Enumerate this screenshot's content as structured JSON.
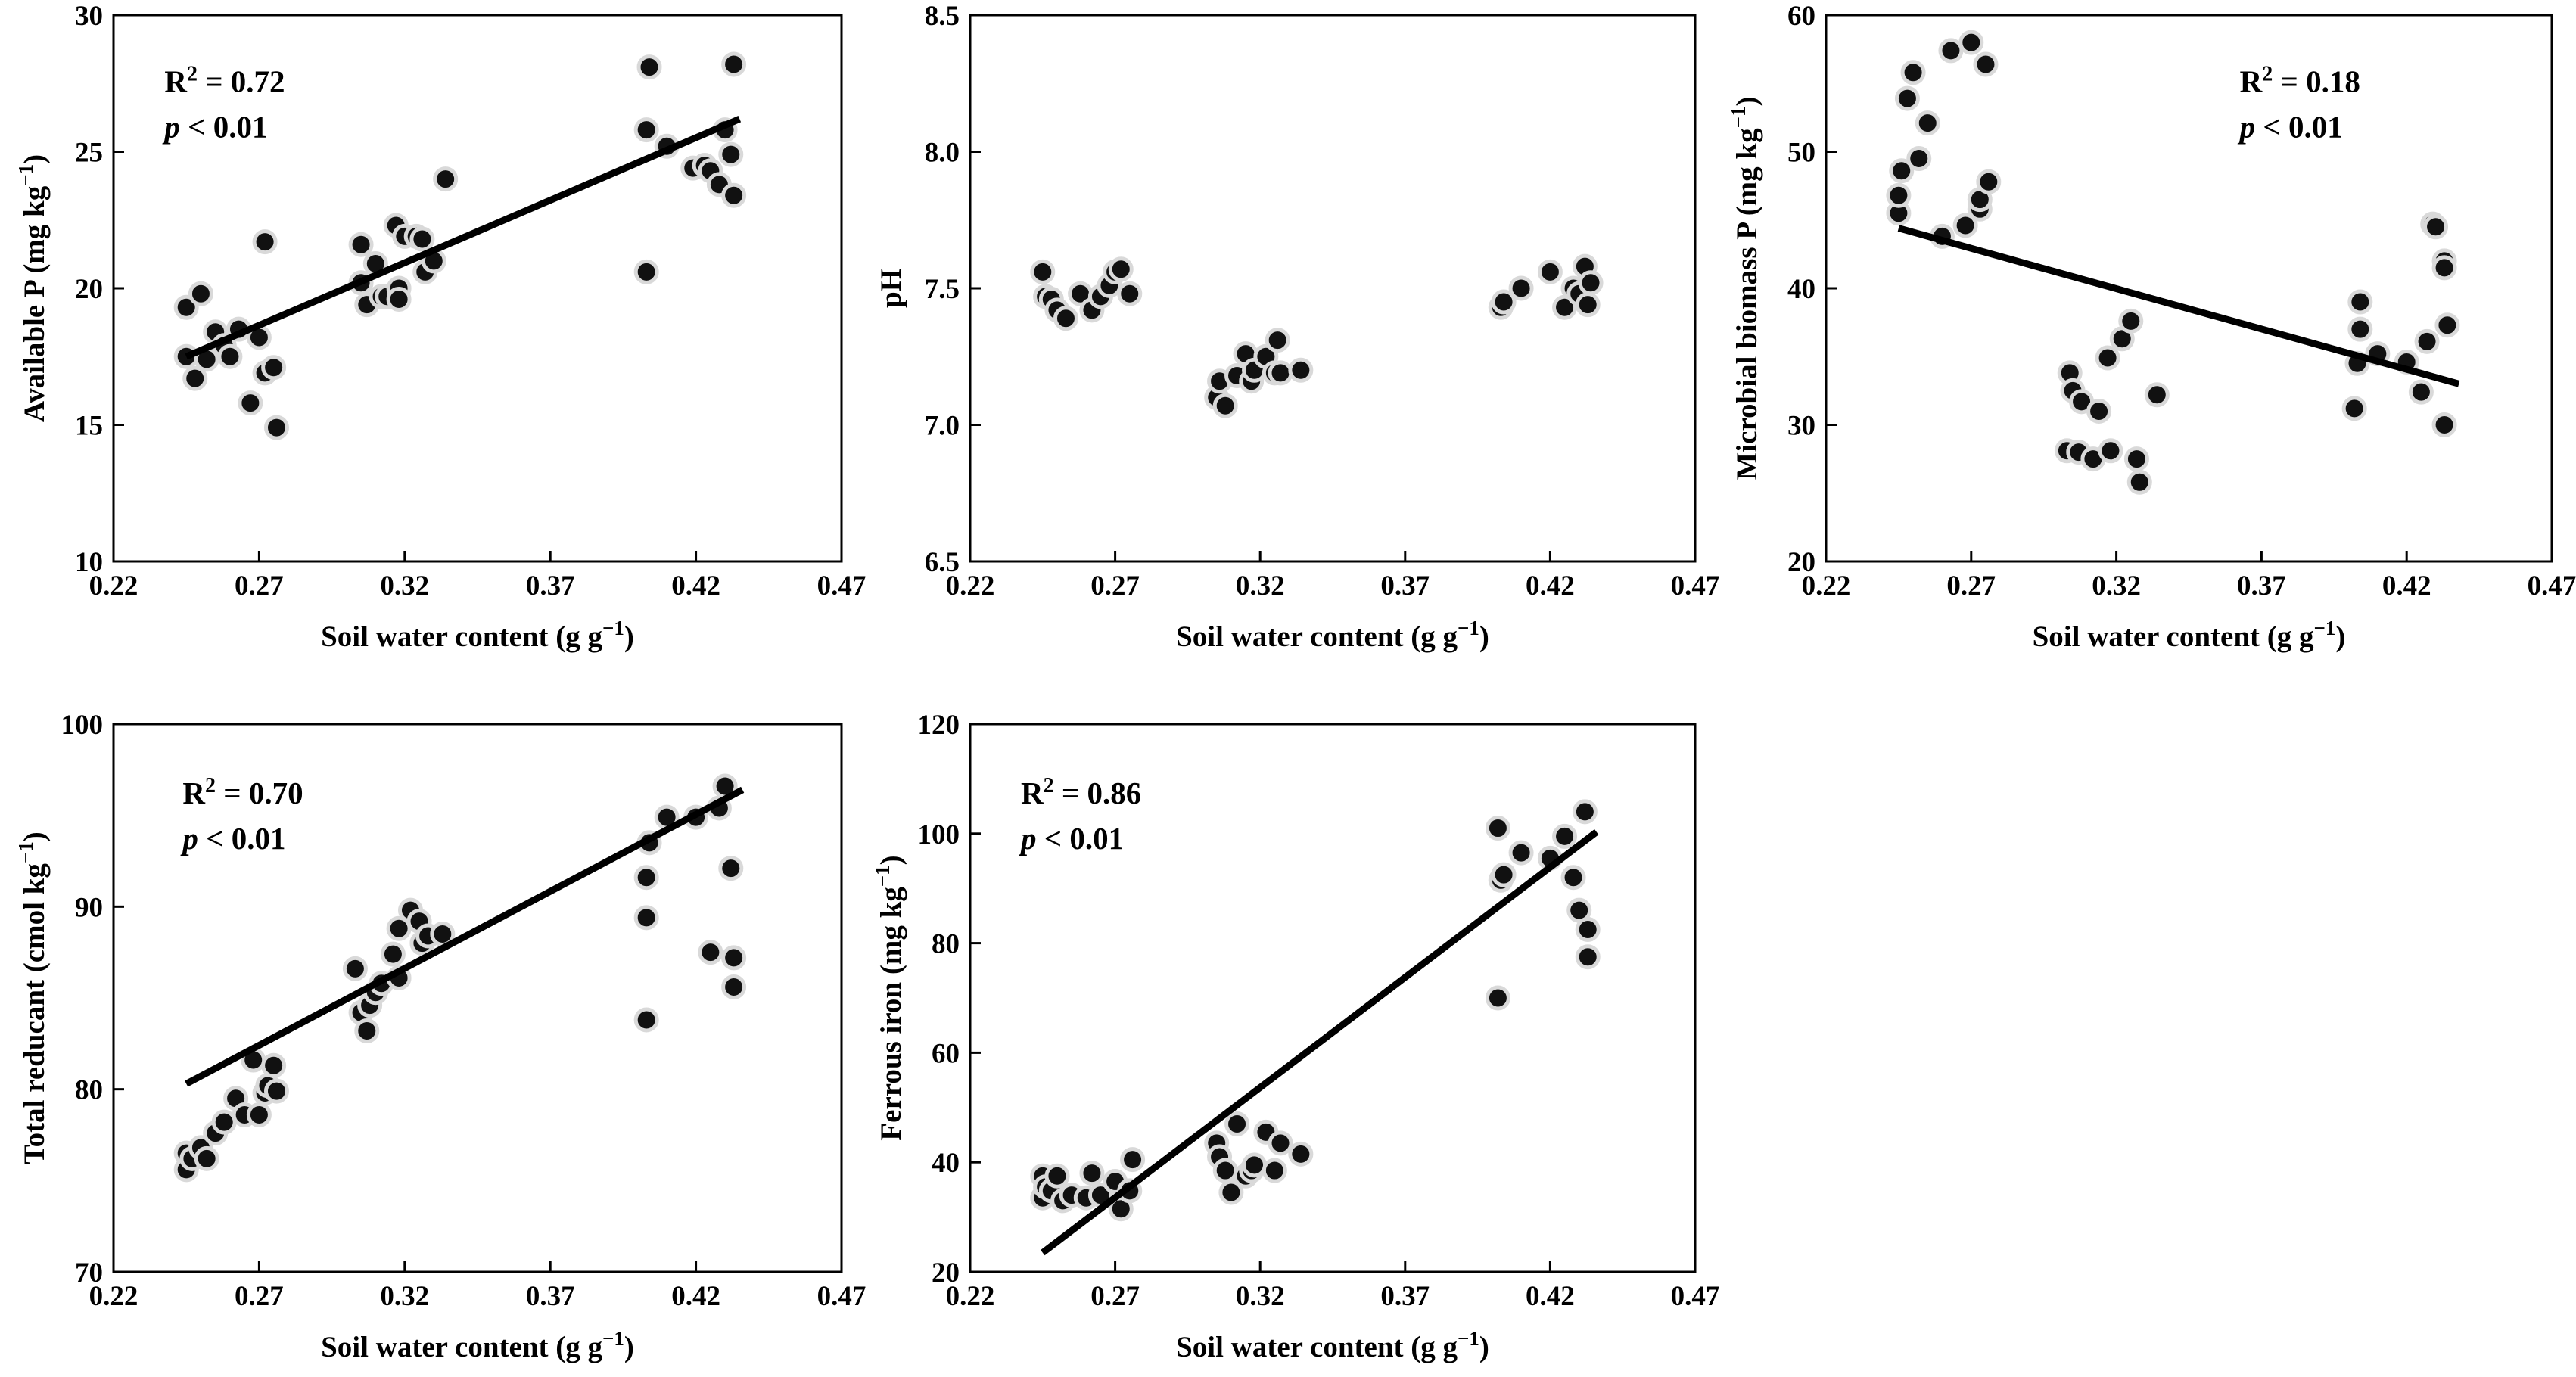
{
  "figure": {
    "style": {
      "point_fill": "#111111",
      "point_stroke": "#d9d9d9",
      "line_color": "#000000",
      "background": "#ffffff"
    }
  },
  "chart_data": [
    {
      "id": "available-p",
      "type": "scatter",
      "xlabel": {
        "main": "Soil water content (g g",
        "sup": "−1",
        "close": ")"
      },
      "ylabel": {
        "main": "Available P (mg kg",
        "sup": "−1",
        "close": ")"
      },
      "xlim": [
        0.22,
        0.47
      ],
      "xticks": [
        "0.22",
        "0.27",
        "0.32",
        "0.37",
        "0.42",
        "0.47"
      ],
      "ylim": [
        10,
        30
      ],
      "yticks": [
        "10",
        "15",
        "20",
        "25",
        "30"
      ],
      "r2_label": "R",
      "r2_sup": "2",
      "r2_value": " = 0.72",
      "p_label": "p",
      "p_value": " < 0.01",
      "stat_position": "top-left",
      "fit": {
        "x": [
          0.245,
          0.435
        ],
        "y": [
          17.5,
          26.2
        ]
      },
      "points": [
        [
          0.245,
          19.3
        ],
        [
          0.245,
          17.5
        ],
        [
          0.248,
          16.7
        ],
        [
          0.25,
          19.8
        ],
        [
          0.252,
          17.4
        ],
        [
          0.255,
          18.4
        ],
        [
          0.258,
          17.9
        ],
        [
          0.26,
          17.5
        ],
        [
          0.263,
          18.5
        ],
        [
          0.267,
          15.8
        ],
        [
          0.27,
          18.2
        ],
        [
          0.272,
          21.7
        ],
        [
          0.272,
          16.9
        ],
        [
          0.275,
          17.1
        ],
        [
          0.276,
          14.9
        ],
        [
          0.305,
          21.6
        ],
        [
          0.305,
          20.2
        ],
        [
          0.307,
          19.4
        ],
        [
          0.31,
          20.9
        ],
        [
          0.312,
          19.7
        ],
        [
          0.314,
          19.7
        ],
        [
          0.317,
          22.3
        ],
        [
          0.318,
          20.0
        ],
        [
          0.318,
          19.6
        ],
        [
          0.32,
          21.9
        ],
        [
          0.324,
          21.9
        ],
        [
          0.326,
          21.8
        ],
        [
          0.327,
          20.6
        ],
        [
          0.33,
          21.0
        ],
        [
          0.334,
          24.0
        ],
        [
          0.403,
          25.8
        ],
        [
          0.403,
          20.6
        ],
        [
          0.404,
          28.1
        ],
        [
          0.41,
          25.2
        ],
        [
          0.419,
          24.4
        ],
        [
          0.423,
          24.5
        ],
        [
          0.425,
          24.3
        ],
        [
          0.428,
          23.8
        ],
        [
          0.43,
          25.8
        ],
        [
          0.432,
          24.9
        ],
        [
          0.433,
          28.2
        ],
        [
          0.433,
          23.4
        ]
      ]
    },
    {
      "id": "ph",
      "type": "scatter",
      "xlabel": {
        "main": "Soil water content (g g",
        "sup": "−1",
        "close": ")"
      },
      "ylabel": {
        "main": "pH",
        "sup": "",
        "close": ""
      },
      "xlim": [
        0.22,
        0.47
      ],
      "xticks": [
        "0.22",
        "0.27",
        "0.32",
        "0.37",
        "0.42",
        "0.47"
      ],
      "ylim": [
        6.5,
        8.5
      ],
      "yticks": [
        "6.5",
        "7.0",
        "7.5",
        "8.0",
        "8.5"
      ],
      "points": [
        [
          0.245,
          7.56
        ],
        [
          0.246,
          7.47
        ],
        [
          0.248,
          7.46
        ],
        [
          0.25,
          7.42
        ],
        [
          0.253,
          7.39
        ],
        [
          0.258,
          7.48
        ],
        [
          0.262,
          7.42
        ],
        [
          0.265,
          7.47
        ],
        [
          0.268,
          7.51
        ],
        [
          0.27,
          7.56
        ],
        [
          0.272,
          7.57
        ],
        [
          0.275,
          7.48
        ],
        [
          0.305,
          7.1
        ],
        [
          0.306,
          7.16
        ],
        [
          0.308,
          7.07
        ],
        [
          0.312,
          7.18
        ],
        [
          0.315,
          7.26
        ],
        [
          0.317,
          7.16
        ],
        [
          0.318,
          7.2
        ],
        [
          0.322,
          7.25
        ],
        [
          0.325,
          7.19
        ],
        [
          0.326,
          7.31
        ],
        [
          0.327,
          7.19
        ],
        [
          0.334,
          7.2
        ],
        [
          0.403,
          7.43
        ],
        [
          0.404,
          7.45
        ],
        [
          0.41,
          7.5
        ],
        [
          0.42,
          7.56
        ],
        [
          0.425,
          7.43
        ],
        [
          0.428,
          7.5
        ],
        [
          0.43,
          7.48
        ],
        [
          0.432,
          7.58
        ],
        [
          0.433,
          7.44
        ],
        [
          0.434,
          7.52
        ]
      ]
    },
    {
      "id": "microbial-biomass-p",
      "type": "scatter",
      "xlabel": {
        "main": "Soil water content (g g",
        "sup": "−1",
        "close": ")"
      },
      "ylabel": {
        "main": "Microbial biomass P (mg kg",
        "sup": "−1",
        "close": ")"
      },
      "xlim": [
        0.22,
        0.47
      ],
      "xticks": [
        "0.22",
        "0.27",
        "0.32",
        "0.37",
        "0.42",
        "0.47"
      ],
      "ylim": [
        20,
        60
      ],
      "yticks": [
        "20",
        "30",
        "40",
        "50",
        "60"
      ],
      "r2_label": "R",
      "r2_sup": "2",
      "r2_value": " = 0.18",
      "p_label": "p",
      "p_value": " < 0.01",
      "stat_position": "top-right",
      "fit": {
        "x": [
          0.245,
          0.438
        ],
        "y": [
          44.4,
          33.0
        ]
      },
      "points": [
        [
          0.245,
          45.5
        ],
        [
          0.245,
          46.8
        ],
        [
          0.246,
          48.6
        ],
        [
          0.248,
          53.9
        ],
        [
          0.25,
          55.8
        ],
        [
          0.252,
          49.5
        ],
        [
          0.255,
          52.1
        ],
        [
          0.26,
          43.8
        ],
        [
          0.263,
          57.4
        ],
        [
          0.268,
          44.6
        ],
        [
          0.27,
          58.0
        ],
        [
          0.273,
          45.8
        ],
        [
          0.273,
          46.5
        ],
        [
          0.275,
          56.4
        ],
        [
          0.276,
          47.8
        ],
        [
          0.303,
          28.1
        ],
        [
          0.304,
          33.8
        ],
        [
          0.305,
          32.5
        ],
        [
          0.307,
          28.0
        ],
        [
          0.308,
          31.7
        ],
        [
          0.312,
          27.5
        ],
        [
          0.314,
          31.0
        ],
        [
          0.317,
          34.9
        ],
        [
          0.318,
          28.1
        ],
        [
          0.322,
          36.3
        ],
        [
          0.325,
          37.6
        ],
        [
          0.327,
          27.5
        ],
        [
          0.328,
          25.8
        ],
        [
          0.334,
          32.2
        ],
        [
          0.402,
          31.2
        ],
        [
          0.403,
          34.5
        ],
        [
          0.404,
          37.0
        ],
        [
          0.404,
          39.0
        ],
        [
          0.41,
          35.2
        ],
        [
          0.42,
          34.6
        ],
        [
          0.425,
          32.4
        ],
        [
          0.427,
          36.1
        ],
        [
          0.429,
          44.7
        ],
        [
          0.43,
          44.5
        ],
        [
          0.433,
          42.0
        ],
        [
          0.433,
          41.5
        ],
        [
          0.433,
          30.0
        ],
        [
          0.434,
          37.3
        ]
      ]
    },
    {
      "id": "total-reducant",
      "type": "scatter",
      "xlabel": {
        "main": "Soil water content (g g",
        "sup": "−1",
        "close": ")"
      },
      "ylabel": {
        "main": "Total reducant (cmol kg",
        "sup": "−1",
        "close": ")"
      },
      "xlim": [
        0.22,
        0.47
      ],
      "xticks": [
        "0.22",
        "0.27",
        "0.32",
        "0.37",
        "0.42",
        "0.47"
      ],
      "ylim": [
        70,
        100
      ],
      "yticks": [
        "70",
        "80",
        "90",
        "100"
      ],
      "r2_label": "R",
      "r2_sup": "2",
      "r2_value": " = 0.70",
      "p_label": "p",
      "p_value": " < 0.01",
      "stat_position": "top-left",
      "fit": {
        "x": [
          0.245,
          0.436
        ],
        "y": [
          80.3,
          96.4
        ]
      },
      "points": [
        [
          0.245,
          76.5
        ],
        [
          0.245,
          75.6
        ],
        [
          0.247,
          76.2
        ],
        [
          0.25,
          76.8
        ],
        [
          0.252,
          76.2
        ],
        [
          0.255,
          77.6
        ],
        [
          0.258,
          78.2
        ],
        [
          0.262,
          79.5
        ],
        [
          0.265,
          78.6
        ],
        [
          0.268,
          81.6
        ],
        [
          0.27,
          78.6
        ],
        [
          0.272,
          79.8
        ],
        [
          0.273,
          80.2
        ],
        [
          0.275,
          81.3
        ],
        [
          0.276,
          79.9
        ],
        [
          0.303,
          86.6
        ],
        [
          0.305,
          84.2
        ],
        [
          0.307,
          83.2
        ],
        [
          0.308,
          84.6
        ],
        [
          0.31,
          85.3
        ],
        [
          0.312,
          85.8
        ],
        [
          0.316,
          87.4
        ],
        [
          0.318,
          88.8
        ],
        [
          0.318,
          86.1
        ],
        [
          0.322,
          89.8
        ],
        [
          0.325,
          89.2
        ],
        [
          0.326,
          88.0
        ],
        [
          0.328,
          88.4
        ],
        [
          0.333,
          88.5
        ],
        [
          0.403,
          83.8
        ],
        [
          0.403,
          89.4
        ],
        [
          0.403,
          91.6
        ],
        [
          0.404,
          93.5
        ],
        [
          0.41,
          94.9
        ],
        [
          0.42,
          94.9
        ],
        [
          0.425,
          87.5
        ],
        [
          0.428,
          95.4
        ],
        [
          0.43,
          96.6
        ],
        [
          0.432,
          92.1
        ],
        [
          0.433,
          87.2
        ],
        [
          0.433,
          85.6
        ]
      ]
    },
    {
      "id": "ferrous-iron",
      "type": "scatter",
      "xlabel": {
        "main": "Soil water content (g g",
        "sup": "−1",
        "close": ")"
      },
      "ylabel": {
        "main": "Ferrous iron (mg kg",
        "sup": "−1",
        "close": ")"
      },
      "xlim": [
        0.22,
        0.47
      ],
      "xticks": [
        "0.22",
        "0.27",
        "0.32",
        "0.37",
        "0.42",
        "0.47"
      ],
      "ylim": [
        20,
        120
      ],
      "yticks": [
        "20",
        "40",
        "60",
        "80",
        "100",
        "120"
      ],
      "r2_label": "R",
      "r2_sup": "2",
      "r2_value": " = 0.86",
      "p_label": "p",
      "p_value": " < 0.01",
      "stat_position": "top-left",
      "fit": {
        "x": [
          0.245,
          0.436
        ],
        "y": [
          23.5,
          100.3
        ]
      },
      "points": [
        [
          0.245,
          33.5
        ],
        [
          0.245,
          37.5
        ],
        [
          0.246,
          35.5
        ],
        [
          0.248,
          34.8
        ],
        [
          0.25,
          37.5
        ],
        [
          0.252,
          33.0
        ],
        [
          0.255,
          34.0
        ],
        [
          0.26,
          33.5
        ],
        [
          0.262,
          38.0
        ],
        [
          0.265,
          34.0
        ],
        [
          0.27,
          36.5
        ],
        [
          0.272,
          31.5
        ],
        [
          0.275,
          34.8
        ],
        [
          0.276,
          40.5
        ],
        [
          0.305,
          43.5
        ],
        [
          0.306,
          41.0
        ],
        [
          0.308,
          38.5
        ],
        [
          0.31,
          34.5
        ],
        [
          0.312,
          47.0
        ],
        [
          0.315,
          37.5
        ],
        [
          0.317,
          38.5
        ],
        [
          0.318,
          39.5
        ],
        [
          0.322,
          45.5
        ],
        [
          0.325,
          38.5
        ],
        [
          0.327,
          43.5
        ],
        [
          0.334,
          41.5
        ],
        [
          0.402,
          70.0
        ],
        [
          0.402,
          101.0
        ],
        [
          0.403,
          91.5
        ],
        [
          0.404,
          92.5
        ],
        [
          0.41,
          96.5
        ],
        [
          0.42,
          95.5
        ],
        [
          0.425,
          99.5
        ],
        [
          0.428,
          92.0
        ],
        [
          0.43,
          86.0
        ],
        [
          0.432,
          104.0
        ],
        [
          0.433,
          77.5
        ],
        [
          0.433,
          82.5
        ]
      ]
    }
  ]
}
